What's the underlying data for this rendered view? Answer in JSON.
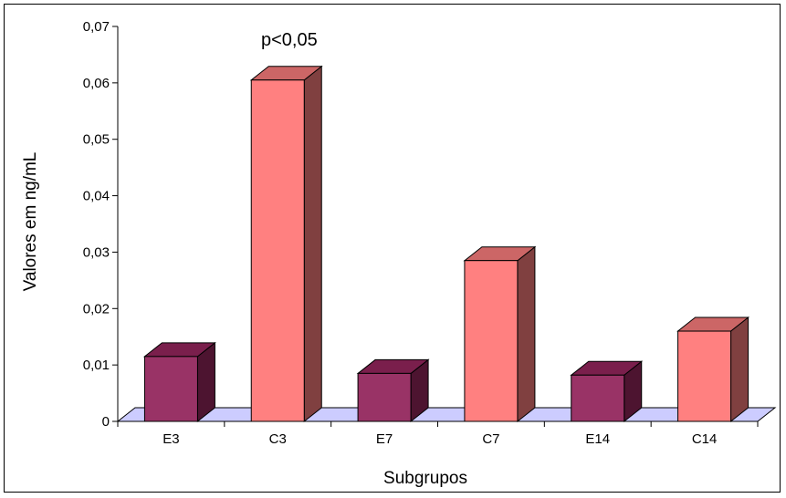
{
  "chart_data": {
    "type": "bar",
    "categories": [
      "E3",
      "C3",
      "E7",
      "C7",
      "E14",
      "C14"
    ],
    "values": [
      0.0115,
      0.0605,
      0.0085,
      0.0285,
      0.0082,
      0.016
    ],
    "xlabel": "Subgrupos",
    "ylabel": "Valores em ng/mL",
    "ylim": [
      0,
      0.07
    ],
    "yticks": [
      "0",
      "0,01",
      "0,02",
      "0,03",
      "0,04",
      "0,05",
      "0,06",
      "0,07"
    ],
    "annotation": "p<0,05",
    "grid": false,
    "legend": "none",
    "style": "3d",
    "colors": {
      "E_front": "#993366",
      "E_top": "#7a1f4c",
      "E_side": "#4d1430",
      "C_front": "#ff8080",
      "C_top": "#cc6666",
      "C_side": "#804040",
      "floor": "#ccccff"
    }
  }
}
